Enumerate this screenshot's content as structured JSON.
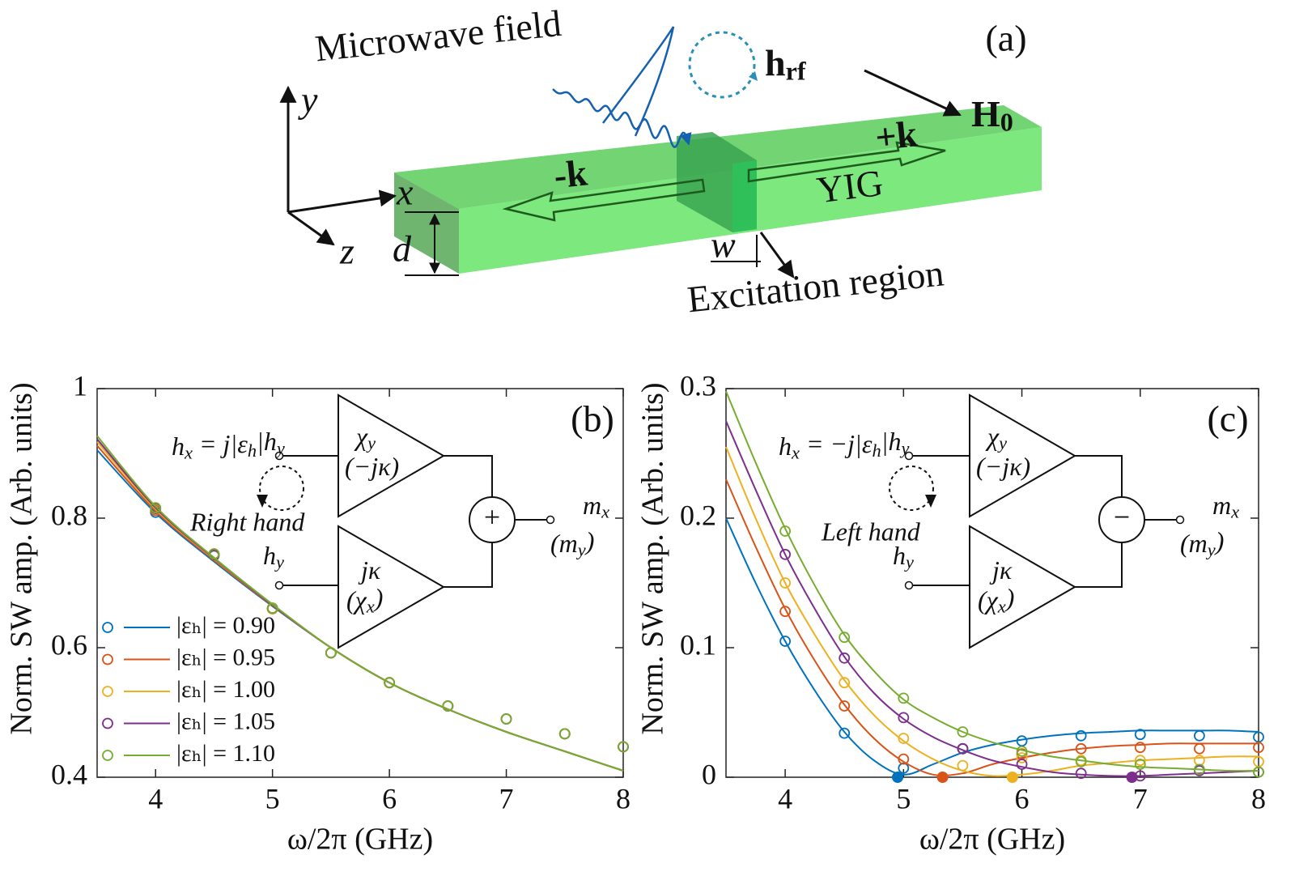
{
  "diagram": {
    "panel_label": "(a)",
    "microwave": "Microwave field",
    "rf_field": [
      {
        "t": "h"
      },
      {
        "sub": "rf"
      }
    ],
    "bias_field": [
      {
        "t": "H"
      },
      {
        "sub": "0"
      }
    ],
    "plus_k": "+k",
    "minus_k": "-k",
    "material": "YIG",
    "axis_x": "x",
    "axis_y": "y",
    "axis_z": "z",
    "thickness": "d",
    "width": "w",
    "region": "Excitation region"
  },
  "chart_data": [
    {
      "type": "line",
      "panel_label": "(b)",
      "xlabel": "ω/2π (GHz)",
      "ylabel": "Norm. SW amp. (Arb. units)",
      "xlim": [
        3.5,
        8
      ],
      "ylim": [
        0.4,
        1
      ],
      "xticks": [
        4,
        5,
        6,
        7,
        8
      ],
      "yticks": [
        0.4,
        0.6,
        0.8,
        1
      ],
      "legend": true,
      "x": [
        3.5,
        4,
        4.5,
        5,
        5.5,
        6,
        6.5,
        7,
        7.5,
        8
      ],
      "marker_x": [
        4,
        4.5,
        5,
        5.5,
        6,
        6.5,
        7,
        7.5,
        8
      ],
      "series": [
        {
          "name": "|εₕ| = 0.90",
          "color": "#0072bd",
          "values": [
            0.905,
            0.808,
            0.733,
            0.664,
            0.6,
            0.546,
            0.505,
            0.47,
            0.44,
            0.41
          ],
          "markers": [
            0.809,
            0.742,
            0.66,
            0.592,
            0.546,
            0.51,
            0.49,
            0.467,
            0.447
          ]
        },
        {
          "name": "|εₕ| = 0.95",
          "color": "#d95319",
          "values": [
            0.912,
            0.811,
            0.735,
            0.665,
            0.6,
            0.546,
            0.505,
            0.47,
            0.44,
            0.41
          ],
          "markers": [
            0.812,
            0.743,
            0.66,
            0.592,
            0.546,
            0.51,
            0.49,
            0.467,
            0.447
          ]
        },
        {
          "name": "|εₕ| = 1.00",
          "color": "#edb120",
          "values": [
            0.918,
            0.814,
            0.737,
            0.666,
            0.6,
            0.546,
            0.505,
            0.47,
            0.44,
            0.41
          ],
          "markers": [
            0.814,
            0.744,
            0.66,
            0.592,
            0.546,
            0.51,
            0.49,
            0.467,
            0.447
          ]
        },
        {
          "name": "|εₕ| = 1.05",
          "color": "#7e2f8e",
          "values": [
            0.922,
            0.816,
            0.738,
            0.666,
            0.6,
            0.546,
            0.505,
            0.47,
            0.44,
            0.41
          ],
          "markers": [
            0.815,
            0.744,
            0.661,
            0.592,
            0.546,
            0.51,
            0.49,
            0.467,
            0.447
          ]
        },
        {
          "name": "|εₕ| = 1.10",
          "color": "#77ac30",
          "values": [
            0.927,
            0.818,
            0.739,
            0.667,
            0.6,
            0.546,
            0.505,
            0.47,
            0.44,
            0.41
          ],
          "markers": [
            0.816,
            0.745,
            0.661,
            0.592,
            0.546,
            0.51,
            0.49,
            0.467,
            0.447
          ]
        }
      ],
      "inset": {
        "equation": [
          {
            "t": "h"
          },
          {
            "sub": "x"
          },
          {
            "t": " = j|ε"
          },
          {
            "sub": "h"
          },
          {
            "t": "|h"
          },
          {
            "sub": "y"
          }
        ],
        "polarization": "Right hand",
        "input2": [
          {
            "t": "h"
          },
          {
            "sub": "y"
          }
        ],
        "upper_gain": [
          {
            "t": "χ"
          },
          {
            "sub": "y"
          }
        ],
        "upper_alt": [
          {
            "t": "(−jκ)"
          }
        ],
        "lower_gain": [
          {
            "t": "jκ"
          }
        ],
        "lower_alt": [
          {
            "t": "(χ"
          },
          {
            "sub": "x"
          },
          {
            "t": ")"
          }
        ],
        "operator": "+",
        "output": [
          {
            "t": "m"
          },
          {
            "sub": "x"
          }
        ],
        "output_alt": [
          {
            "t": "(m"
          },
          {
            "sub": "y"
          },
          {
            "t": ")"
          }
        ]
      }
    },
    {
      "type": "line",
      "panel_label": "(c)",
      "xlabel": "ω/2π (GHz)",
      "ylabel": "Norm. SW amp. (Arb. units)",
      "xlim": [
        3.5,
        8
      ],
      "ylim": [
        0,
        0.3
      ],
      "xticks": [
        4,
        5,
        6,
        7,
        8
      ],
      "yticks": [
        0,
        0.1,
        0.2,
        0.3
      ],
      "legend": false,
      "x": [
        3.5,
        3.75,
        4,
        4.25,
        4.5,
        4.75,
        5,
        5.25,
        5.5,
        5.75,
        6,
        6.25,
        6.5,
        6.75,
        7,
        7.25,
        7.5,
        7.75,
        8
      ],
      "marker_x": [
        4,
        4.5,
        5,
        5.5,
        6,
        6.5,
        7,
        7.5,
        8
      ],
      "series": [
        {
          "color": "#0072bd",
          "values": [
            0.2,
            0.15,
            0.105,
            0.067,
            0.035,
            0.013,
            0.002,
            0.01,
            0.019,
            0.025,
            0.029,
            0.032,
            0.034,
            0.035,
            0.036,
            0.036,
            0.036,
            0.036,
            0.035
          ],
          "markers": [
            0.105,
            0.034,
            0.007,
            0.022,
            0.028,
            0.032,
            0.033,
            0.032,
            0.031
          ],
          "minimum": {
            "x": 4.95,
            "y": 0
          }
        },
        {
          "color": "#d95319",
          "values": [
            0.23,
            0.178,
            0.13,
            0.09,
            0.056,
            0.03,
            0.012,
            0.002,
            0.003,
            0.01,
            0.015,
            0.019,
            0.022,
            0.024,
            0.025,
            0.026,
            0.026,
            0.026,
            0.026
          ],
          "markers": [
            0.128,
            0.055,
            0.014,
            0.022,
            0.018,
            0.022,
            0.023,
            0.022,
            0.023
          ],
          "minimum": {
            "x": 5.33,
            "y": 0
          }
        },
        {
          "color": "#edb120",
          "values": [
            0.255,
            0.2,
            0.15,
            0.11,
            0.075,
            0.048,
            0.028,
            0.014,
            0.005,
            0.001,
            0.002,
            0.005,
            0.009,
            0.011,
            0.013,
            0.014,
            0.015,
            0.016,
            0.016
          ],
          "markers": [
            0.15,
            0.073,
            0.03,
            0.009,
            0.015,
            0.013,
            0.013,
            0.013,
            0.012
          ],
          "minimum": {
            "x": 5.92,
            "y": 0
          }
        },
        {
          "color": "#7e2f8e",
          "values": [
            0.275,
            0.222,
            0.172,
            0.13,
            0.093,
            0.065,
            0.045,
            0.031,
            0.021,
            0.013,
            0.008,
            0.004,
            0.002,
            0.001,
            0.001,
            0.002,
            0.003,
            0.004,
            0.005
          ],
          "markers": [
            0.172,
            0.092,
            0.046,
            0.022,
            0.01,
            0.003,
            0.001,
            0.005,
            0.004
          ],
          "minimum": {
            "x": 6.93,
            "y": 0
          }
        },
        {
          "color": "#77ac30",
          "values": [
            0.298,
            0.243,
            0.192,
            0.148,
            0.11,
            0.082,
            0.06,
            0.046,
            0.035,
            0.027,
            0.021,
            0.016,
            0.013,
            0.01,
            0.008,
            0.007,
            0.006,
            0.005,
            0.005
          ],
          "markers": [
            0.19,
            0.108,
            0.061,
            0.035,
            0.02,
            0.012,
            0.01,
            0.006,
            0.004
          ]
        }
      ],
      "inset": {
        "equation": [
          {
            "t": "h"
          },
          {
            "sub": "x"
          },
          {
            "t": " = −j|ε"
          },
          {
            "sub": "h"
          },
          {
            "t": "|h"
          },
          {
            "sub": "y"
          }
        ],
        "polarization": "Left hand",
        "input2": [
          {
            "t": "h"
          },
          {
            "sub": "y"
          }
        ],
        "upper_gain": [
          {
            "t": "χ"
          },
          {
            "sub": "y"
          }
        ],
        "upper_alt": [
          {
            "t": "(−jκ)"
          }
        ],
        "lower_gain": [
          {
            "t": "jκ"
          }
        ],
        "lower_alt": [
          {
            "t": "(χ"
          },
          {
            "sub": "x"
          },
          {
            "t": ")"
          }
        ],
        "operator": "−",
        "output": [
          {
            "t": "m"
          },
          {
            "sub": "x"
          }
        ],
        "output_alt": [
          {
            "t": "(m"
          },
          {
            "sub": "y"
          },
          {
            "t": ")"
          }
        ]
      }
    }
  ]
}
